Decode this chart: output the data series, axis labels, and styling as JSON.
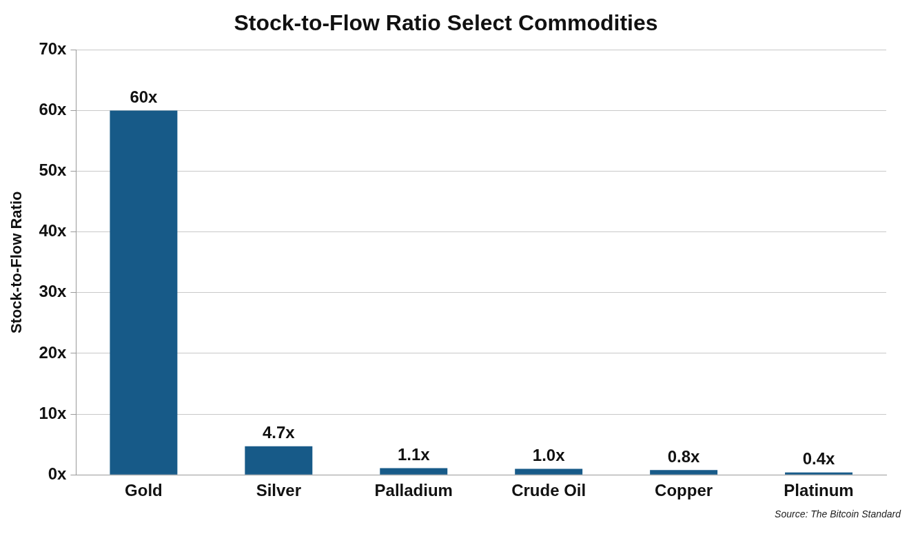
{
  "chart_data": {
    "type": "bar",
    "title": "Stock-to-Flow Ratio Select Commodities",
    "ylabel": "Stock-to-Flow Ratio",
    "categories": [
      "Gold",
      "Silver",
      "Palladium",
      "Crude Oil",
      "Copper",
      "Platinum"
    ],
    "values": [
      60,
      4.7,
      1.1,
      1.0,
      0.8,
      0.4
    ],
    "value_labels": [
      "60x",
      "4.7x",
      "1.1x",
      "1.0x",
      "0.8x",
      "0.4x"
    ],
    "color": "#175a88",
    "ylim": [
      0,
      70
    ],
    "yticks": [
      {
        "value": 0,
        "label": "0x"
      },
      {
        "value": 10,
        "label": "10x"
      },
      {
        "value": 20,
        "label": "20x"
      },
      {
        "value": 30,
        "label": "30x"
      },
      {
        "value": 40,
        "label": "40x"
      },
      {
        "value": 50,
        "label": "50x"
      },
      {
        "value": 60,
        "label": "60x"
      },
      {
        "value": 70,
        "label": "70x"
      }
    ],
    "grid": "y",
    "legend": false,
    "annotations": [
      "Source: The Bitcoin Standard"
    ]
  }
}
